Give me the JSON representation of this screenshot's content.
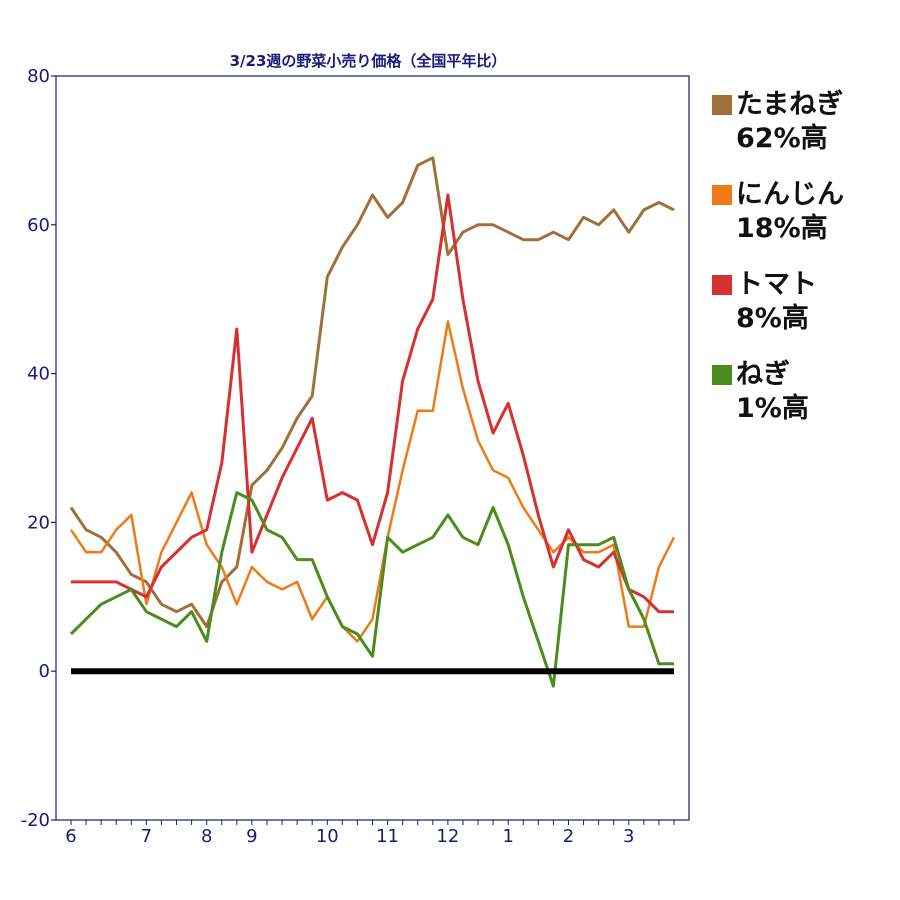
{
  "chart_data": {
    "type": "line",
    "title": "3/23週の野菜小売り価格（全国平年比）",
    "ylim": [
      -20,
      80
    ],
    "yticks": [
      -20,
      0,
      20,
      40,
      60,
      80
    ],
    "x_count": 41,
    "x_ticks": [
      {
        "label": "6",
        "index": 0
      },
      {
        "label": "7",
        "index": 5
      },
      {
        "label": "8",
        "index": 9
      },
      {
        "label": "9",
        "index": 12
      },
      {
        "label": "10",
        "index": 17
      },
      {
        "label": "11",
        "index": 21
      },
      {
        "label": "12",
        "index": 25
      },
      {
        "label": "1",
        "index": 29
      },
      {
        "label": "2",
        "index": 33
      },
      {
        "label": "3",
        "index": 37
      }
    ],
    "baseline": 0,
    "series": [
      {
        "name": "たまねぎ",
        "color": "#a0703a",
        "stroke_width": 3,
        "values": [
          22,
          19,
          18,
          16,
          13,
          12,
          9,
          8,
          9,
          6,
          12,
          14,
          25,
          27,
          30,
          34,
          37,
          53,
          57,
          60,
          64,
          61,
          63,
          68,
          69,
          56,
          59,
          60,
          60,
          59,
          58,
          58,
          59,
          58,
          61,
          60,
          62,
          59,
          62,
          63,
          62
        ]
      },
      {
        "name": "にんじん",
        "color": "#ee7a1a",
        "stroke_width": 2.5,
        "values": [
          19,
          16,
          16,
          19,
          21,
          9,
          16,
          20,
          24,
          17,
          14,
          9,
          14,
          12,
          11,
          12,
          7,
          10,
          6,
          4,
          7,
          18,
          27,
          35,
          35,
          47,
          38,
          31,
          27,
          26,
          22,
          19,
          16,
          18,
          16,
          16,
          17,
          6,
          6,
          14,
          18
        ]
      },
      {
        "name": "トマト",
        "color": "#d63030",
        "stroke_width": 3,
        "values": [
          12,
          12,
          12,
          12,
          11,
          10,
          14,
          16,
          18,
          19,
          28,
          46,
          16,
          21,
          26,
          30,
          34,
          23,
          24,
          23,
          17,
          24,
          39,
          46,
          50,
          64,
          50,
          39,
          32,
          36,
          29,
          21,
          14,
          19,
          15,
          14,
          16,
          11,
          10,
          8,
          8
        ]
      },
      {
        "name": "ねぎ",
        "color": "#4a8c1e",
        "stroke_width": 3,
        "values": [
          5,
          7,
          9,
          10,
          11,
          8,
          7,
          6,
          8,
          4,
          16,
          24,
          23,
          19,
          18,
          15,
          15,
          10,
          6,
          5,
          2,
          18,
          16,
          17,
          18,
          21,
          18,
          17,
          22,
          17,
          10,
          4,
          -2,
          17,
          17,
          17,
          18,
          11,
          7,
          1,
          1
        ]
      }
    ]
  },
  "legend": [
    {
      "name": "たまねぎ",
      "note": "62%高",
      "color": "#a0703a"
    },
    {
      "name": "にんじん",
      "note": "18%高",
      "color": "#ee7a1a"
    },
    {
      "name": "トマト",
      "note": "8%高",
      "color": "#d63030"
    },
    {
      "name": "ねぎ",
      "note": "1%高",
      "color": "#4a8c1e"
    }
  ]
}
